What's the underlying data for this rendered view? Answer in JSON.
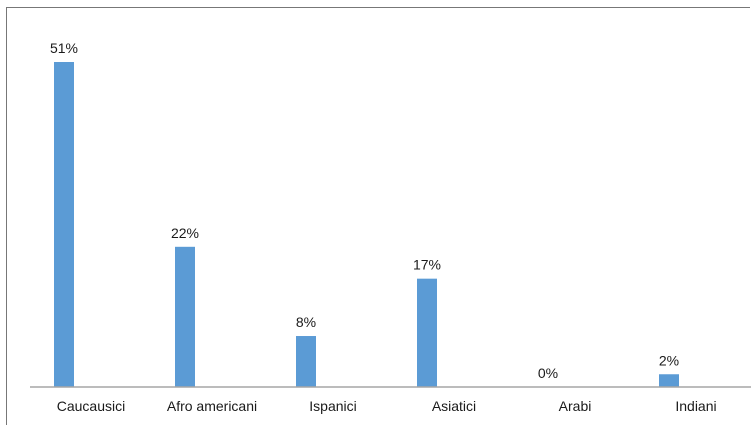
{
  "chart_data": {
    "type": "bar",
    "title": "",
    "xlabel": "",
    "ylabel": "",
    "categories": [
      "Caucausici",
      "Afro americani",
      "Ispanici",
      "Asiatici",
      "Arabi",
      "Indiani"
    ],
    "values": [
      51,
      22,
      8,
      17,
      0,
      2
    ],
    "data_labels": [
      "51%",
      "22%",
      "8%",
      "17%",
      "0%",
      "2%"
    ],
    "ylim": [
      0,
      51
    ],
    "grid": false,
    "legend": "none",
    "colors": {
      "bar": "#5b9bd5",
      "axis": "#a6a6a6",
      "text": "#1a1a1a"
    }
  }
}
